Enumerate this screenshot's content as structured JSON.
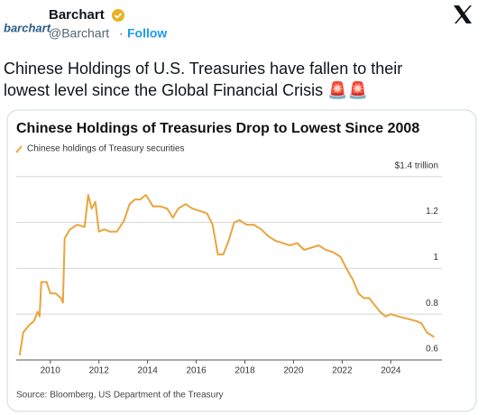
{
  "tweet": {
    "logo": "barchart",
    "name": "Barchart",
    "handle": "@Barchart",
    "separator": "·",
    "follow": "Follow",
    "text_lines": [
      "Chinese Holdings of U.S. Treasuries have fallen to their",
      "lowest level since the Global Financial Crisis 🚨🚨"
    ]
  },
  "chart_data": {
    "type": "line",
    "title": "Chinese Holdings of Treasuries Drop to Lowest Since 2008",
    "source": "Source: Bloomberg, US Department of the Treasury",
    "x": [
      2008.74,
      2008.89,
      2009.11,
      2009.33,
      2009.48,
      2009.56,
      2009.63,
      2009.85,
      2010.0,
      2010.22,
      2010.44,
      2010.52,
      2010.59,
      2010.81,
      2011.11,
      2011.41,
      2011.56,
      2011.7,
      2011.85,
      2012.0,
      2012.22,
      2012.44,
      2012.74,
      2013.04,
      2013.26,
      2013.48,
      2013.7,
      2013.93,
      2014.22,
      2014.52,
      2014.81,
      2015.04,
      2015.26,
      2015.56,
      2015.85,
      2016.15,
      2016.44,
      2016.67,
      2016.89,
      2017.11,
      2017.33,
      2017.56,
      2017.78,
      2018.07,
      2018.37,
      2018.67,
      2018.96,
      2019.26,
      2019.56,
      2019.85,
      2020.15,
      2020.44,
      2020.74,
      2021.04,
      2021.33,
      2021.63,
      2021.93,
      2022.22,
      2022.44,
      2022.67,
      2022.89,
      2023.11,
      2023.33,
      2023.56,
      2023.78,
      2024.0,
      2024.3,
      2024.67,
      2025.04,
      2025.26,
      2025.48,
      2025.78
    ],
    "series": [
      {
        "name": "Chinese holdings of Treasury securities",
        "color": "#e9a53c",
        "values": [
          0.62,
          0.72,
          0.75,
          0.77,
          0.81,
          0.79,
          0.94,
          0.94,
          0.89,
          0.89,
          0.87,
          0.85,
          1.13,
          1.17,
          1.19,
          1.18,
          1.32,
          1.26,
          1.29,
          1.16,
          1.17,
          1.16,
          1.16,
          1.21,
          1.28,
          1.3,
          1.3,
          1.32,
          1.27,
          1.27,
          1.26,
          1.22,
          1.26,
          1.28,
          1.26,
          1.25,
          1.24,
          1.19,
          1.06,
          1.06,
          1.12,
          1.2,
          1.21,
          1.19,
          1.19,
          1.17,
          1.14,
          1.12,
          1.11,
          1.1,
          1.11,
          1.08,
          1.09,
          1.1,
          1.08,
          1.07,
          1.05,
          0.99,
          0.95,
          0.89,
          0.87,
          0.87,
          0.84,
          0.81,
          0.79,
          0.8,
          0.79,
          0.78,
          0.77,
          0.76,
          0.72,
          0.7
        ]
      }
    ],
    "xlim": [
      2008.6,
      2026.1
    ],
    "xticks": [
      2010,
      2012,
      2014,
      2016,
      2018,
      2020,
      2022,
      2024
    ],
    "ylim": [
      0.6,
      1.45
    ],
    "yticks": [
      0.6,
      0.8,
      1.0,
      1.2,
      {
        "value": 1.4,
        "label": "$1.4 trillion"
      }
    ],
    "grid": true
  }
}
